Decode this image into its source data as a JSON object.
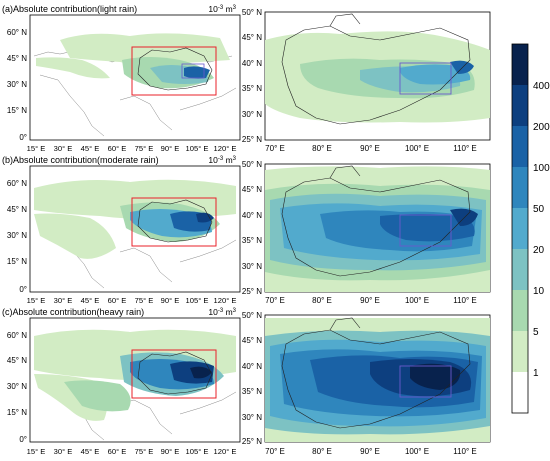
{
  "panels": [
    {
      "id": "a",
      "title": "(a)Absolute contribution(light rain)",
      "unit_main": "10",
      "unit_exp": "-3",
      "unit_tail": " m",
      "unit_sup": "3",
      "intensity": 1
    },
    {
      "id": "b",
      "title": "(b)Absolute contribution(moderate rain)",
      "unit_main": "10",
      "unit_exp": "-3",
      "unit_tail": " m",
      "unit_sup": "3",
      "intensity": 2
    },
    {
      "id": "c",
      "title": "(c)Absolute contribution(heavy rain)",
      "unit_main": "10",
      "unit_exp": "-3",
      "unit_tail": " m",
      "unit_sup": "3",
      "intensity": 3
    }
  ],
  "left_map": {
    "lat_ticks": [
      "60° N",
      "45° N",
      "30° N",
      "15° N",
      "0°"
    ],
    "lon_ticks": [
      "15° E",
      "30° E",
      "45° E",
      "60° E",
      "75° E",
      "90° E",
      "105° E",
      "120° E"
    ]
  },
  "right_map": {
    "lat_ticks": [
      "50° N",
      "45° N",
      "40° N",
      "35° N",
      "30° N",
      "25° N"
    ],
    "lon_ticks": [
      "70° E",
      "80° E",
      "90° E",
      "100° E",
      "110° E"
    ]
  },
  "colorbar": {
    "labels": [
      "400",
      "200",
      "100",
      "50",
      "20",
      "10",
      "5",
      "1"
    ],
    "colors": [
      "#08224d",
      "#0d3f7f",
      "#1a62a6",
      "#2f86bd",
      "#52aacd",
      "#7dc2c3",
      "#a8d9b0",
      "#d2ecc4",
      "#ffffff"
    ]
  },
  "colors": {
    "region_box": "#e8212a",
    "focus_box": "#6a5acd",
    "border": "#222222"
  }
}
